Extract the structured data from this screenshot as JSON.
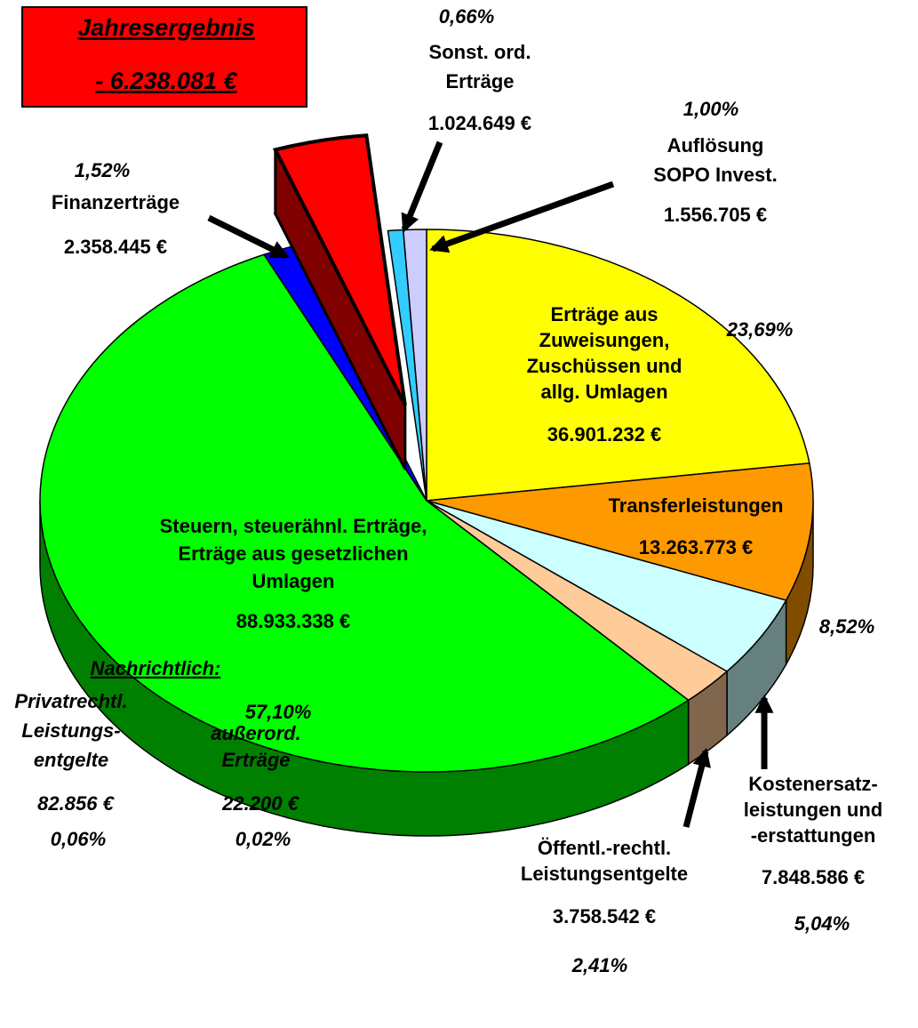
{
  "chart_data": {
    "type": "pie3d",
    "labels": [
      [
        "Erträge aus",
        "Zuweisungen,",
        "Zuschüssen und",
        "allg. Umlagen"
      ],
      [
        "Transferleistungen"
      ],
      [
        "Kostenersatz-",
        "leistungen und",
        "-erstattungen"
      ],
      [
        "Öffentl.-rechtl.",
        "Leistungsentgelte"
      ],
      [
        "Steuern, steuerähnl. Erträge,",
        "Erträge aus gesetzlichen",
        "Umlagen"
      ],
      [
        "Finanzerträge"
      ],
      [
        "Sonst. ord.",
        "Erträge"
      ],
      [
        "Auflösung",
        "SOPO Invest."
      ]
    ],
    "values": [
      36901232,
      13263773,
      7848586,
      3758542,
      88933338,
      2358445,
      1024649,
      1556705
    ],
    "value_labels": [
      "36.901.232 €",
      "13.263.773 €",
      "7.848.586 €",
      "3.758.542 €",
      "88.933.338 €",
      "2.358.445 €",
      "1.024.649 €",
      "1.556.705 €"
    ],
    "percents": [
      23.69,
      8.52,
      5.04,
      2.41,
      57.1,
      1.52,
      0.66,
      1.0
    ],
    "percent_labels": [
      "23,69%",
      "8,52%",
      "5,04%",
      "2,41%",
      "57,10%",
      "1,52%",
      "0,66%",
      "1,00%"
    ],
    "colors": [
      "#ffff00",
      "#ff9900",
      "#ccffff",
      "#ffcc99",
      "#00ff00",
      "#0000ff",
      "#33ccff",
      "#ccccff"
    ],
    "result": {
      "label": "Jahresergebnis",
      "value": -6238081,
      "value_label": "- 6.238.081 €",
      "color": "#ff0000"
    },
    "note": {
      "title": "Nachrichtlich:",
      "items": [
        {
          "lines": [
            "Privatrechtl.",
            "Leistungs-",
            "entgelte"
          ],
          "value": 82856,
          "value_label": "82.856 €",
          "percent": 0.06,
          "percent_label": "0,06%"
        },
        {
          "lines": [
            "außerord.",
            "Erträge"
          ],
          "value": 22200,
          "value_label": "22.200 €",
          "percent": 0.02,
          "percent_label": "0,02%"
        }
      ]
    }
  }
}
